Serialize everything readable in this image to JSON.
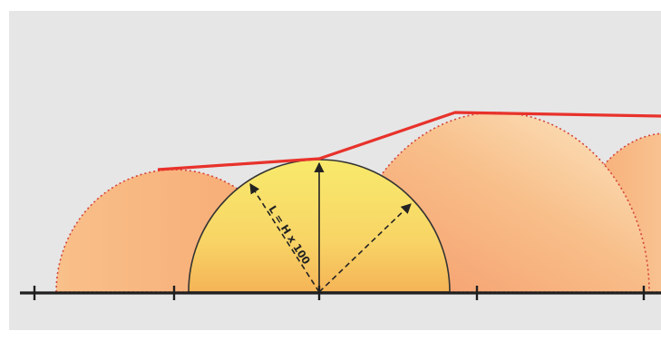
{
  "formula_label": "L = H x 100",
  "colors": {
    "background": "#e6e6e6",
    "envelope_line": "#e8322b",
    "dotted_outline": "#d6443a",
    "ground_line": "#1f1f1f",
    "arrow": "#222222",
    "highlight_dome_top": "#f8e86a",
    "highlight_dome_bottom": "#f5b85a",
    "dome_light": "#fbe4c0",
    "dome_dark": "#f6a66c"
  }
}
